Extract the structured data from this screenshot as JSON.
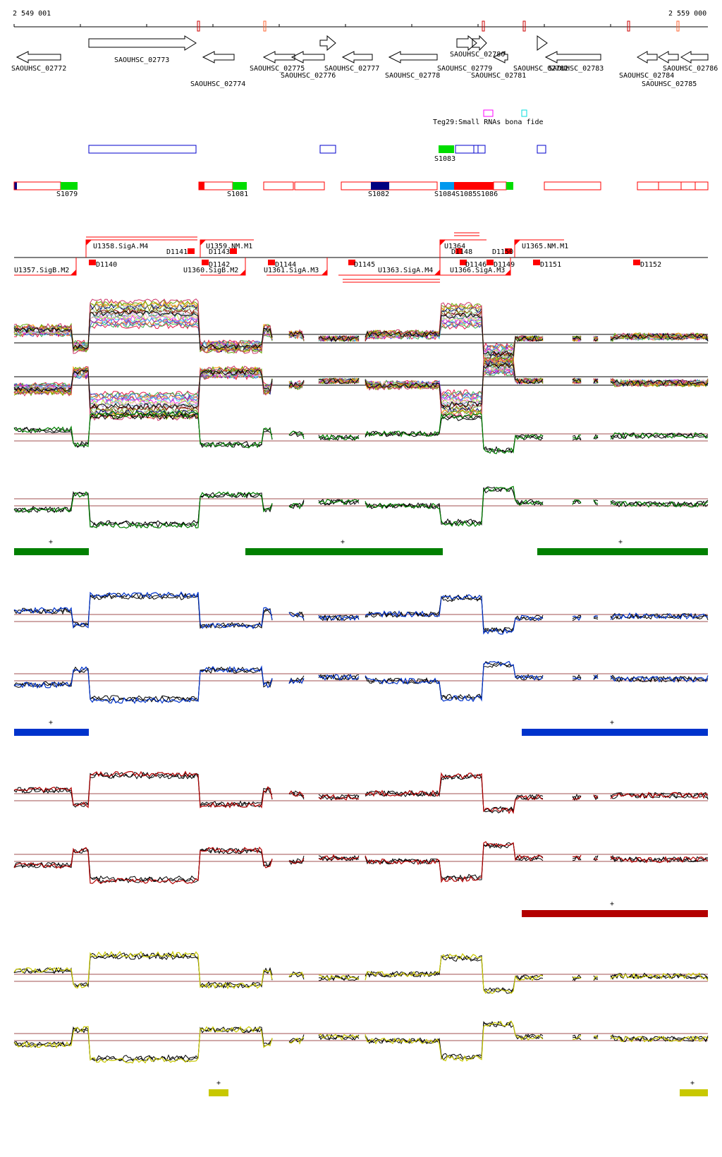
{
  "coordinates": {
    "start": "2 549 001",
    "end": "2 559 000"
  },
  "genes": [
    {
      "name": "SAOUHSC_02772",
      "strand": "-"
    },
    {
      "name": "SAOUHSC_02773",
      "strand": "+"
    },
    {
      "name": "SAOUHSC_02774",
      "strand": "-"
    },
    {
      "name": "SAOUHSC_02775",
      "strand": "-"
    },
    {
      "name": "SAOUHSC_02776",
      "strand": "-"
    },
    {
      "name": "SAOUHSC_02777",
      "strand": "-"
    },
    {
      "name": "SAOUHSC_02778",
      "strand": "-"
    },
    {
      "name": "SAOUHSC_02779",
      "strand": "+"
    },
    {
      "name": "SAOUHSC_02780",
      "strand": "+"
    },
    {
      "name": "SAOUHSC_02781",
      "strand": "-"
    },
    {
      "name": "SAOUHSC_02782",
      "strand": "+"
    },
    {
      "name": "SAOUHSC_02783",
      "strand": "-"
    },
    {
      "name": "SAOUHSC_02784",
      "strand": "-"
    },
    {
      "name": "SAOUHSC_02785",
      "strand": "-"
    },
    {
      "name": "SAOUHSC_02786",
      "strand": "-"
    }
  ],
  "small_rna_label": "Teg29:Small RNAs bona fide",
  "s_segments": [
    "S1079",
    "S1081",
    "S1082",
    "S1083",
    "S1084",
    "S1085",
    "S1086"
  ],
  "u_segments": [
    "U1357.SigB.M2",
    "U1358.SigA.M4",
    "U1359.NM.M1",
    "U1360.SigB.M2",
    "U1361.SigA.M3",
    "U1363.SigA.M4",
    "U1364",
    "U1365.NM.M1",
    "U1366.SigA.M3"
  ],
  "d_segments": [
    "D1140",
    "D1141",
    "D1142",
    "D1143",
    "D1144",
    "D1145",
    "D1146",
    "D1148",
    "D1149",
    "D1150",
    "D1151",
    "D1152"
  ],
  "expression_panels": [
    {
      "color": "#008000",
      "strand_marks": [
        "+",
        "+",
        "+"
      ]
    },
    {
      "color": "#0033cc",
      "strand_marks": [
        "+",
        "+"
      ]
    },
    {
      "color": "#b30000",
      "strand_marks": [
        "+"
      ]
    },
    {
      "color": "#c8c800",
      "strand_marks": [
        "+",
        "+"
      ]
    }
  ],
  "colors": {
    "gene_outline": "#000000",
    "segment_red": "#ff0000",
    "segment_green": "#00dd00",
    "rna_magenta": "#ff00ff",
    "rna_cyan": "#00dddd",
    "box_blue": "#0000cc"
  }
}
